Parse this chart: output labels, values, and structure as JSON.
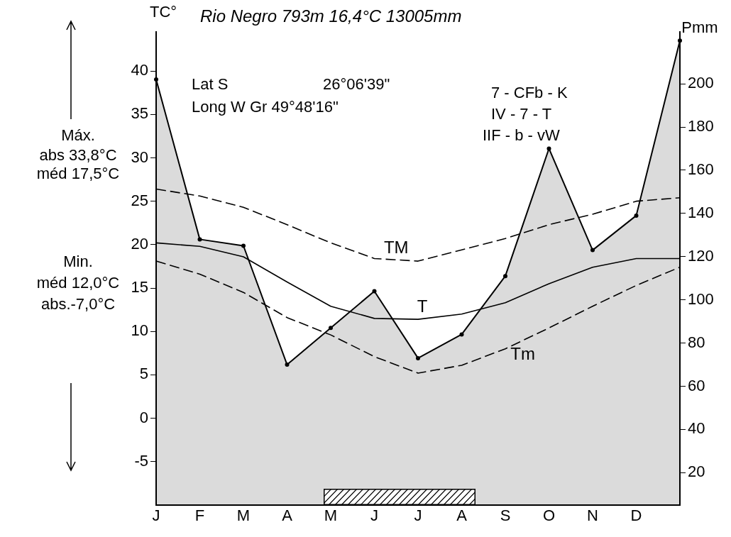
{
  "chart_data": {
    "type": "line",
    "title": "Rio Negro 793m 16,4°C 13005mm",
    "ylabel": "TC°",
    "y2label": "Pmm",
    "categories": [
      "J",
      "F",
      "M",
      "A",
      "M",
      "J",
      "J",
      "A",
      "S",
      "O",
      "N",
      "D",
      null
    ],
    "ylim": [
      -10,
      44.5
    ],
    "yticks": [
      -5,
      0,
      5,
      10,
      15,
      20,
      25,
      30,
      35,
      40
    ],
    "y2lim": [
      5,
      224
    ],
    "y2ticks": [
      20,
      40,
      60,
      80,
      100,
      120,
      140,
      160,
      180,
      200
    ],
    "series": [
      {
        "type": "area",
        "axis": "y2",
        "color": "#000000",
        "marker": "circle",
        "values": [
          202,
          128,
          125,
          70,
          87,
          104,
          73,
          84,
          111,
          170,
          123,
          139,
          220
        ]
      },
      {
        "name": "TM",
        "color": "#000000",
        "line_style": "dashed",
        "marker": "none",
        "values": [
          26.4,
          25.6,
          24.3,
          22.3,
          20.2,
          18.4,
          18.1,
          19.4,
          20.7,
          22.3,
          23.5,
          25.0,
          25.4
        ]
      },
      {
        "name": "T",
        "color": "#000000",
        "line_style": "solid",
        "marker": "none",
        "values": [
          20.2,
          19.8,
          18.6,
          15.7,
          12.9,
          11.5,
          11.4,
          12.0,
          13.3,
          15.5,
          17.4,
          18.4,
          18.4
        ]
      },
      {
        "name": "Tm",
        "color": "#000000",
        "line_style": "dashed",
        "marker": "none",
        "values": [
          18.1,
          16.6,
          14.5,
          11.6,
          9.6,
          7.1,
          5.2,
          6.1,
          8.0,
          10.4,
          12.9,
          15.3,
          17.4
        ]
      }
    ],
    "annotations": [
      "Lat S",
      "26°06'39\"",
      "Long W Gr 49°48'16\"",
      "7 - CFb - K",
      "IV - 7 - T",
      "IIF - b - vW",
      "Máx.",
      "abs 33,8°C",
      "méd 17,5°C",
      "Min.",
      "méd 12,0°C",
      "abs.-7,0°C"
    ],
    "grid": false,
    "legend": false
  }
}
